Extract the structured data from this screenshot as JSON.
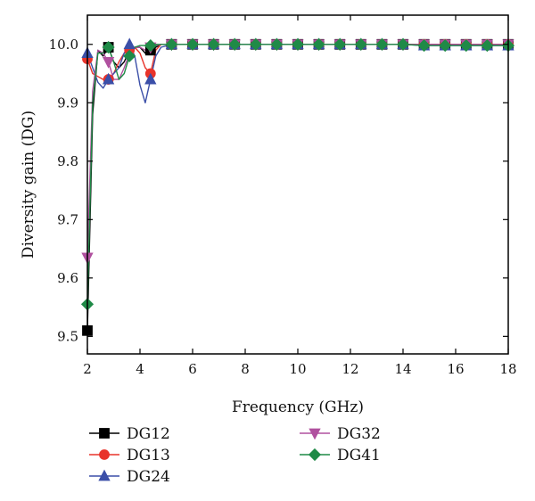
{
  "chart_data": {
    "type": "line",
    "xlabel": "Frequency (GHz)",
    "ylabel": "Diversity gain (DG)",
    "xlim": [
      2,
      18
    ],
    "ylim": [
      9.47,
      10.05
    ],
    "xticks": [
      2,
      4,
      6,
      8,
      10,
      12,
      14,
      16,
      18
    ],
    "yticks": [
      9.5,
      9.6,
      9.7,
      9.8,
      9.9,
      10.0
    ],
    "xtick_labels": [
      "2",
      "4",
      "6",
      "8",
      "10",
      "12",
      "14",
      "16",
      "18"
    ],
    "ytick_labels": [
      "9.5",
      "9.6",
      "9.7",
      "9.8",
      "9.9",
      "10.0"
    ],
    "grid": false,
    "legend_position": "bottom",
    "series": [
      {
        "name": "DG12",
        "color": "#000000",
        "marker": "square",
        "x": [
          2,
          2.2,
          2.4,
          2.6,
          2.8,
          3.0,
          3.2,
          3.4,
          3.6,
          3.8,
          4.0,
          4.2,
          4.4,
          4.6,
          4.8,
          5.2,
          6,
          6.8,
          7.6,
          8.4,
          9.2,
          10,
          10.8,
          11.6,
          12.4,
          13.2,
          14,
          14.8,
          15.6,
          16.4,
          17.2,
          18
        ],
        "y": [
          9.51,
          9.88,
          9.99,
          9.98,
          9.995,
          9.97,
          9.96,
          9.97,
          9.99,
          9.995,
          9.995,
          9.985,
          9.99,
          9.995,
          10.0,
          10.0,
          10.0,
          10.0,
          10.0,
          10.0,
          10.0,
          10.0,
          10.0,
          10.0,
          10.0,
          10.0,
          10.0,
          10.0,
          10.0,
          10.0,
          10.0,
          10.0
        ],
        "marker_x": [
          2,
          2.8,
          4.4,
          5.2,
          6,
          6.8,
          7.6,
          8.4,
          9.2,
          10,
          10.8,
          11.6,
          12.4,
          13.2,
          14,
          14.8,
          15.6,
          16.4,
          17.2,
          18
        ]
      },
      {
        "name": "DG13",
        "color": "#e8332a",
        "marker": "circle",
        "x": [
          2,
          2.2,
          2.4,
          2.6,
          2.8,
          3.0,
          3.2,
          3.4,
          3.6,
          3.8,
          4.0,
          4.2,
          4.4,
          4.6,
          4.8,
          5.2,
          6,
          6.8,
          7.6,
          8.4,
          9.2,
          10,
          10.8,
          11.6,
          12.4,
          13.2,
          14,
          14.8,
          15.6,
          16.4,
          17.2,
          18
        ],
        "y": [
          9.975,
          9.95,
          9.945,
          9.94,
          9.94,
          9.95,
          9.97,
          9.985,
          9.99,
          9.995,
          9.985,
          9.96,
          9.95,
          9.99,
          10.0,
          10.0,
          10.0,
          10.0,
          10.0,
          10.0,
          10.0,
          10.0,
          10.0,
          10.0,
          10.0,
          10.0,
          10.0,
          10.0,
          10.0,
          10.0,
          10.0,
          10.0
        ],
        "marker_x": [
          2,
          2.8,
          3.6,
          4.4,
          5.2,
          6,
          6.8,
          7.6,
          8.4,
          9.2,
          10,
          10.8,
          11.6,
          12.4,
          13.2,
          14,
          14.8,
          15.6,
          16.4,
          17.2,
          18
        ]
      },
      {
        "name": "DG24",
        "color": "#3b4fa8",
        "marker": "triangle-up",
        "x": [
          2,
          2.2,
          2.4,
          2.6,
          2.8,
          3.0,
          3.2,
          3.4,
          3.6,
          3.8,
          4.0,
          4.2,
          4.4,
          4.6,
          4.8,
          5.2,
          6,
          6.8,
          7.6,
          8.4,
          9.2,
          10,
          10.8,
          11.6,
          12.4,
          13.2,
          14,
          14.8,
          15.6,
          16.4,
          17.2,
          18
        ],
        "y": [
          9.985,
          9.96,
          9.935,
          9.925,
          9.94,
          9.95,
          9.96,
          9.985,
          10.0,
          9.98,
          9.93,
          9.9,
          9.94,
          9.98,
          9.995,
          10.0,
          10.0,
          10.0,
          10.0,
          10.0,
          10.0,
          10.0,
          10.0,
          10.0,
          10.0,
          10.0,
          10.0,
          9.998,
          9.998,
          9.998,
          9.998,
          9.998
        ],
        "marker_x": [
          2,
          2.8,
          3.6,
          4.4,
          5.2,
          6,
          6.8,
          7.6,
          8.4,
          9.2,
          10,
          10.8,
          11.6,
          12.4,
          13.2,
          14,
          14.8,
          15.6,
          16.4,
          17.2,
          18
        ]
      },
      {
        "name": "DG32",
        "color": "#b0509f",
        "marker": "triangle-down",
        "x": [
          2,
          2.2,
          2.4,
          2.6,
          2.8,
          3.0,
          3.2,
          3.4,
          3.6,
          3.8,
          4.0,
          4.2,
          4.4,
          4.6,
          4.8,
          5.2,
          6,
          6.8,
          7.6,
          8.4,
          9.2,
          10,
          10.8,
          11.6,
          12.4,
          13.2,
          14,
          14.8,
          15.6,
          16.4,
          17.2,
          18
        ],
        "y": [
          9.635,
          9.92,
          9.99,
          9.985,
          9.97,
          9.94,
          9.94,
          9.96,
          9.985,
          9.995,
          9.995,
          9.99,
          9.995,
          9.998,
          10.0,
          10.0,
          10.0,
          10.0,
          10.0,
          10.0,
          10.0,
          10.0,
          10.0,
          10.0,
          10.0,
          10.0,
          10.0,
          10.0,
          10.0,
          10.0,
          10.0,
          10.0
        ],
        "marker_x": [
          2,
          2.8,
          4.4,
          5.2,
          6,
          6.8,
          7.6,
          8.4,
          9.2,
          10,
          10.8,
          11.6,
          12.4,
          13.2,
          14,
          14.8,
          15.6,
          16.4,
          17.2,
          18
        ]
      },
      {
        "name": "DG41",
        "color": "#1f8a47",
        "marker": "diamond",
        "x": [
          2,
          2.2,
          2.4,
          2.6,
          2.8,
          3.0,
          3.2,
          3.4,
          3.6,
          3.8,
          4.0,
          4.2,
          4.4,
          4.6,
          4.8,
          5.2,
          6,
          6.8,
          7.6,
          8.4,
          9.2,
          10,
          10.8,
          11.6,
          12.4,
          13.2,
          14,
          14.8,
          15.6,
          16.4,
          17.2,
          18
        ],
        "y": [
          9.555,
          9.9,
          9.985,
          9.985,
          9.995,
          9.97,
          9.94,
          9.95,
          9.98,
          9.995,
          9.998,
          9.998,
          9.998,
          10.0,
          10.0,
          10.0,
          10.0,
          10.0,
          10.0,
          10.0,
          10.0,
          10.0,
          10.0,
          10.0,
          10.0,
          10.0,
          10.0,
          9.998,
          9.998,
          9.998,
          9.998,
          9.998
        ],
        "marker_x": [
          2,
          2.8,
          3.6,
          4.4,
          5.2,
          6,
          6.8,
          7.6,
          8.4,
          9.2,
          10,
          10.8,
          11.6,
          12.4,
          13.2,
          14,
          14.8,
          15.6,
          16.4,
          17.2,
          18
        ]
      }
    ]
  }
}
